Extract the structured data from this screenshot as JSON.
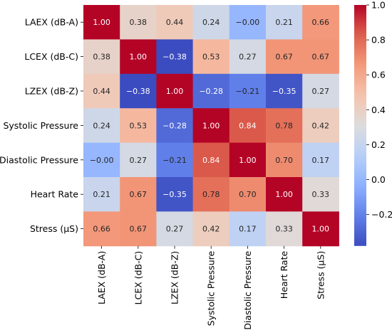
{
  "chart_data": {
    "type": "heatmap",
    "title": "",
    "xlabel": "",
    "ylabel": "",
    "rows": [
      "LAEX (dB-A)",
      "LCEX (dB-C)",
      "LZEX (dB-Z)",
      "Systolic Pressure",
      "Diastolic Pressure",
      "Heart Rate",
      "Stress (µS)"
    ],
    "columns": [
      "LAEX (dB-A)",
      "LCEX (dB-C)",
      "LZEX (dB-Z)",
      "Systolic Pressure",
      "Diastolic Pressure",
      "Heart Rate",
      "Stress (µS)"
    ],
    "values": [
      [
        1.0,
        0.38,
        0.44,
        0.24,
        -0.0,
        0.21,
        0.66
      ],
      [
        0.38,
        1.0,
        -0.38,
        0.53,
        0.27,
        0.67,
        0.67
      ],
      [
        0.44,
        -0.38,
        1.0,
        -0.28,
        -0.21,
        -0.35,
        0.27
      ],
      [
        0.24,
        0.53,
        -0.28,
        1.0,
        0.84,
        0.78,
        0.42
      ],
      [
        -0.0,
        0.27,
        -0.21,
        0.84,
        1.0,
        0.7,
        0.17
      ],
      [
        0.21,
        0.67,
        -0.35,
        0.78,
        0.7,
        1.0,
        0.33
      ],
      [
        0.66,
        0.67,
        0.27,
        0.42,
        0.17,
        0.33,
        1.0
      ]
    ],
    "cell_labels": [
      [
        "1.00",
        "0.38",
        "0.44",
        "0.24",
        "−0.00",
        "0.21",
        "0.66"
      ],
      [
        "0.38",
        "1.00",
        "−0.38",
        "0.53",
        "0.27",
        "0.67",
        "0.67"
      ],
      [
        "0.44",
        "−0.38",
        "1.00",
        "−0.28",
        "−0.21",
        "−0.35",
        "0.27"
      ],
      [
        "0.24",
        "0.53",
        "−0.28",
        "1.00",
        "0.84",
        "0.78",
        "0.42"
      ],
      [
        "−0.00",
        "0.27",
        "−0.21",
        "0.84",
        "1.00",
        "0.70",
        "0.17"
      ],
      [
        "0.21",
        "0.67",
        "−0.35",
        "0.78",
        "0.70",
        "1.00",
        "0.33"
      ],
      [
        "0.66",
        "0.67",
        "0.27",
        "0.42",
        "0.17",
        "0.33",
        "1.00"
      ]
    ],
    "colormap": "coolwarm",
    "colorbar": {
      "range": [
        -0.38,
        1.0
      ],
      "ticks": [
        -0.2,
        0.0,
        0.2,
        0.4,
        0.6,
        0.8,
        1.0
      ],
      "tick_labels": [
        "−0.2",
        "0.0",
        "0.2",
        "0.4",
        "0.6",
        "0.8",
        "1.0"
      ]
    },
    "grid": false,
    "legend": "colorbar-right"
  }
}
